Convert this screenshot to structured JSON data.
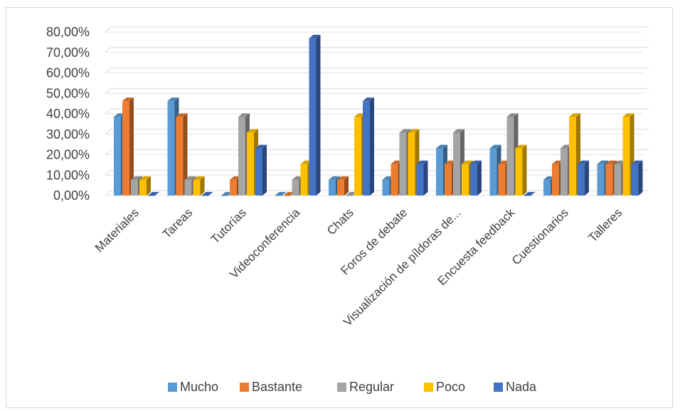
{
  "chart_data": {
    "type": "bar",
    "title": "",
    "xlabel": "",
    "ylabel": "",
    "ylim": [
      0,
      0.8
    ],
    "y_ticks": [
      "0,00%",
      "10,00%",
      "20,00%",
      "30,00%",
      "40,00%",
      "50,00%",
      "60,00%",
      "70,00%",
      "80,00%"
    ],
    "grid": true,
    "legend_position": "bottom",
    "style": "3d-clustered-column",
    "categories": [
      "Materiales",
      "Tareas",
      "Tutorías",
      "Videoconferencia",
      "Chats",
      "Foros de debate",
      "Visualización de píldoras de...",
      "Encuesta feedback",
      "Cuestionarios",
      "Talleres"
    ],
    "series": [
      {
        "name": "Mucho",
        "color": "#5b9bd5",
        "values": [
          0.385,
          0.462,
          0.0,
          0.0,
          0.077,
          0.077,
          0.231,
          0.231,
          0.077,
          0.154
        ]
      },
      {
        "name": "Bastante",
        "color": "#ed7d31",
        "values": [
          0.462,
          0.385,
          0.077,
          0.0,
          0.077,
          0.154,
          0.154,
          0.154,
          0.154,
          0.154
        ]
      },
      {
        "name": "Regular",
        "color": "#a5a5a5",
        "values": [
          0.077,
          0.077,
          0.385,
          0.077,
          0.0,
          0.308,
          0.308,
          0.385,
          0.231,
          0.154
        ]
      },
      {
        "name": "Poco",
        "color": "#ffc000",
        "values": [
          0.077,
          0.077,
          0.308,
          0.154,
          0.385,
          0.308,
          0.154,
          0.231,
          0.385,
          0.385
        ]
      },
      {
        "name": "Nada",
        "color": "#4472c4",
        "values": [
          0.0,
          0.0,
          0.231,
          0.769,
          0.462,
          0.154,
          0.154,
          0.0,
          0.154,
          0.154
        ]
      }
    ]
  }
}
